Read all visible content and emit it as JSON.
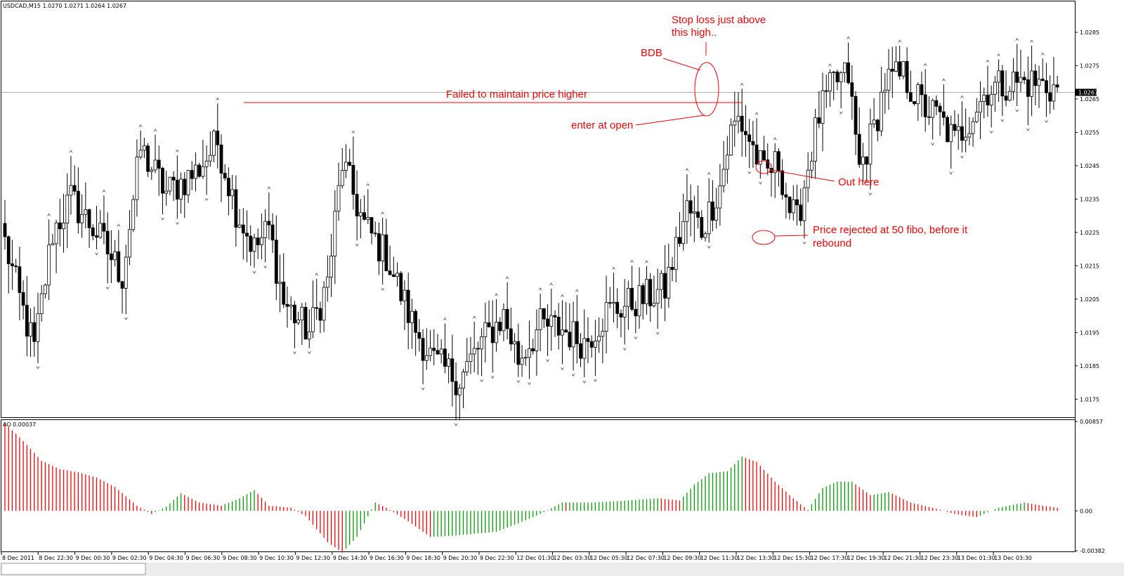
{
  "header": {
    "symbol_info": "USDCAD,M15  1.0270 1.0271 1.0264 1.0267",
    "indicator_label": "AO 0.00037"
  },
  "colors": {
    "up_candle": "#ffffff",
    "down_candle": "#000000",
    "ao_up": "#00a000",
    "ao_down": "#ff0000",
    "annotation": "#ff0000",
    "grid": "#000000",
    "fractal": "#808080"
  },
  "chart_data": [
    {
      "type": "candlestick",
      "title": "USDCAD,M15",
      "ylim": [
        1.017,
        1.0293
      ],
      "y_ticks": [
        "1.0285",
        "1.0275",
        "1.0265",
        "1.0255",
        "1.0245",
        "1.0235",
        "1.0225",
        "1.0215",
        "1.0205",
        "1.0195",
        "1.0185",
        "1.0175"
      ],
      "current_price": "1.0267",
      "x_ticks": [
        "8 Dec 2011",
        "8 Dec 22:30",
        "9 Dec 00:30",
        "9 Dec 02:30",
        "9 Dec 04:30",
        "9 Dec 06:30",
        "9 Dec 08:30",
        "9 Dec 10:30",
        "9 Dec 12:30",
        "9 Dec 14:30",
        "9 Dec 16:30",
        "9 Dec 18:30",
        "9 Dec 20:30",
        "9 Dec 22:30",
        "12 Dec 01:30",
        "12 Dec 03:30",
        "12 Dec 05:30",
        "12 Dec 07:30",
        "12 Dec 09:30",
        "12 Dec 11:30",
        "12 Dec 13:30",
        "12 Dec 15:30",
        "12 Dec 17:30",
        "12 Dec 19:30",
        "12 Dec 21:30",
        "12 Dec 23:30",
        "13 Dec 01:30",
        "13 Dec 03:30"
      ],
      "anchors": [
        [
          0,
          1.0222
        ],
        [
          4,
          1.0205
        ],
        [
          8,
          1.019
        ],
        [
          13,
          1.0225
        ],
        [
          18,
          1.0235
        ],
        [
          25,
          1.0225
        ],
        [
          32,
          1.0212
        ],
        [
          37,
          1.025
        ],
        [
          44,
          1.0237
        ],
        [
          52,
          1.0243
        ],
        [
          58,
          1.0252
        ],
        [
          63,
          1.0232
        ],
        [
          68,
          1.022
        ],
        [
          72,
          1.0226
        ],
        [
          76,
          1.0204
        ],
        [
          83,
          1.0195
        ],
        [
          88,
          1.021
        ],
        [
          92,
          1.0246
        ],
        [
          98,
          1.0227
        ],
        [
          104,
          1.0218
        ],
        [
          111,
          1.0198
        ],
        [
          117,
          1.0186
        ],
        [
          124,
          1.0181
        ],
        [
          130,
          1.0192
        ],
        [
          136,
          1.02
        ],
        [
          140,
          1.0187
        ],
        [
          146,
          1.0197
        ],
        [
          152,
          1.0196
        ],
        [
          158,
          1.0192
        ],
        [
          164,
          1.0201
        ],
        [
          171,
          1.0204
        ],
        [
          176,
          1.0206
        ],
        [
          180,
          1.0208
        ],
        [
          186,
          1.0232
        ],
        [
          190,
          1.0226
        ],
        [
          195,
          1.0239
        ],
        [
          198,
          1.0255
        ],
        [
          200,
          1.0259
        ],
        [
          203,
          1.0253
        ],
        [
          207,
          1.0242
        ],
        [
          211,
          1.0246
        ],
        [
          214,
          1.0232
        ],
        [
          216,
          1.0228
        ],
        [
          219,
          1.0245
        ],
        [
          222,
          1.026
        ],
        [
          226,
          1.027
        ],
        [
          230,
          1.0272
        ],
        [
          233,
          1.0244
        ],
        [
          237,
          1.0256
        ],
        [
          240,
          1.027
        ],
        [
          245,
          1.0272
        ],
        [
          250,
          1.0263
        ],
        [
          255,
          1.0259
        ],
        [
          259,
          1.0252
        ],
        [
          264,
          1.0261
        ],
        [
          268,
          1.0268
        ],
        [
          274,
          1.027
        ],
        [
          280,
          1.027
        ],
        [
          287,
          1.0268
        ]
      ],
      "ao": {
        "label": "AO",
        "value": "0.00037",
        "ylim": [
          -0.00382,
          0.00857
        ],
        "y_ticks": [
          "0.00857",
          "0.00",
          "-0.00382"
        ],
        "anchors": [
          [
            0,
            0.0084
          ],
          [
            5,
            0.0067
          ],
          [
            10,
            0.0048
          ],
          [
            15,
            0.004
          ],
          [
            20,
            0.0037
          ],
          [
            25,
            0.0032
          ],
          [
            30,
            0.0023
          ],
          [
            36,
            0.0005
          ],
          [
            40,
            -0.0003
          ],
          [
            44,
            0.0004
          ],
          [
            48,
            0.0017
          ],
          [
            53,
            0.0008
          ],
          [
            59,
            0.0005
          ],
          [
            64,
            0.0012
          ],
          [
            68,
            0.002
          ],
          [
            72,
            0.0005
          ],
          [
            78,
            0.0003
          ],
          [
            82,
            -0.0005
          ],
          [
            88,
            -0.003
          ],
          [
            92,
            -0.004
          ],
          [
            96,
            -0.0025
          ],
          [
            101,
            0.0008
          ],
          [
            104,
            0.0003
          ],
          [
            110,
            -0.001
          ],
          [
            116,
            -0.0025
          ],
          [
            122,
            -0.0024
          ],
          [
            128,
            -0.0022
          ],
          [
            134,
            -0.002
          ],
          [
            140,
            -0.0012
          ],
          [
            146,
            -0.0003
          ],
          [
            152,
            0.0008
          ],
          [
            160,
            0.0008
          ],
          [
            170,
            0.001
          ],
          [
            178,
            0.0012
          ],
          [
            184,
            0.001
          ],
          [
            188,
            0.0025
          ],
          [
            192,
            0.0036
          ],
          [
            197,
            0.0038
          ],
          [
            201,
            0.0052
          ],
          [
            205,
            0.0047
          ],
          [
            210,
            0.0028
          ],
          [
            215,
            0.0012
          ],
          [
            219,
            0.0001
          ],
          [
            223,
            0.0022
          ],
          [
            227,
            0.0028
          ],
          [
            231,
            0.0028
          ],
          [
            236,
            0.0015
          ],
          [
            241,
            0.0018
          ],
          [
            247,
            0.0008
          ],
          [
            253,
            0.0003
          ],
          [
            259,
            -0.0003
          ],
          [
            265,
            -0.0006
          ],
          [
            271,
            0.0003
          ],
          [
            278,
            0.0008
          ],
          [
            283,
            0.0005
          ],
          [
            287,
            0.0003
          ]
        ]
      }
    }
  ],
  "annotations": {
    "stop_loss": [
      "Stop loss just above",
      "this high.."
    ],
    "bdb": "BDB",
    "failed": "Failed to maintain price higher",
    "enter": "enter at open",
    "out": "Out here",
    "rejected": [
      "Price rejected at 50 fibo, before it",
      "rebound"
    ]
  }
}
